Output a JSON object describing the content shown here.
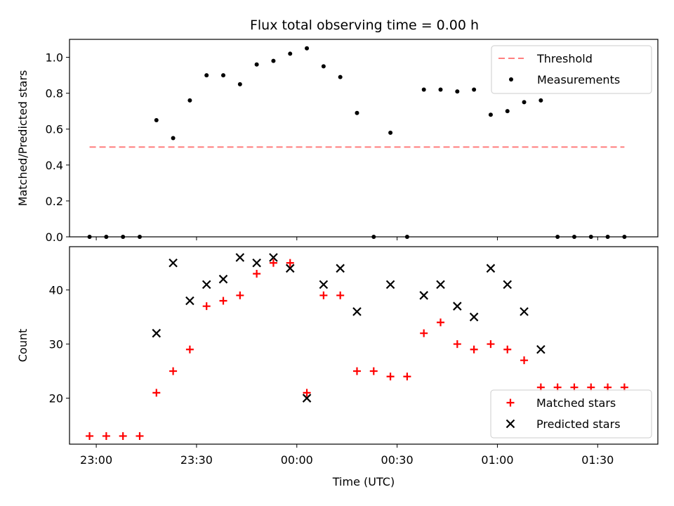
{
  "chart_data": {
    "title": "Flux total observing time = 0.00 h",
    "xlabel": "Time (UTC)",
    "x_tick_labels": [
      "23:00",
      "23:30",
      "00:00",
      "00:30",
      "01:00",
      "01:30"
    ],
    "x_tick_minutes": [
      0,
      30,
      60,
      90,
      120,
      150
    ],
    "xlim_minutes": [
      -8,
      168
    ],
    "x_times": [
      "22:58",
      "23:03",
      "23:08",
      "23:13",
      "23:18",
      "23:23",
      "23:28",
      "23:33",
      "23:38",
      "23:43",
      "23:48",
      "23:53",
      "23:58",
      "00:03",
      "00:08",
      "00:13",
      "00:18",
      "00:23",
      "00:28",
      "00:33",
      "00:38",
      "00:43",
      "00:48",
      "00:53",
      "00:58",
      "01:03",
      "01:08",
      "01:13",
      "01:18",
      "01:23",
      "01:28",
      "01:33",
      "01:38"
    ],
    "x_minutes": [
      -2,
      3,
      8,
      13,
      18,
      23,
      28,
      33,
      38,
      43,
      48,
      53,
      58,
      63,
      68,
      73,
      78,
      83,
      88,
      93,
      98,
      103,
      108,
      113,
      118,
      123,
      128,
      133,
      138,
      143,
      148,
      153,
      158
    ],
    "panels": [
      {
        "type": "scatter",
        "ylabel": "Matched/Predicted stars",
        "ylim": [
          0,
          1.1
        ],
        "yticks": [
          0.0,
          0.2,
          0.4,
          0.6,
          0.8,
          1.0
        ],
        "ytick_labels": [
          "0.0",
          "0.2",
          "0.4",
          "0.6",
          "0.8",
          "1.0"
        ],
        "legend": "top-right",
        "threshold": {
          "name": "Threshold",
          "value": 0.5,
          "color": "#ff7f7f",
          "style": "dashed"
        },
        "series": [
          {
            "name": "Measurements",
            "marker": "dot",
            "color": "#000000",
            "values": [
              0.0,
              0.0,
              0.0,
              0.0,
              0.65,
              0.55,
              0.76,
              0.9,
              0.9,
              0.85,
              0.96,
              0.98,
              1.02,
              1.05,
              0.95,
              0.89,
              0.69,
              0.0,
              0.58,
              0.0,
              0.82,
              0.82,
              0.81,
              0.82,
              0.68,
              0.7,
              0.75,
              0.76,
              0.0,
              0.0,
              0.0,
              0.0,
              0.0
            ]
          }
        ]
      },
      {
        "type": "scatter",
        "ylabel": "Count",
        "ylim": [
          11.5,
          48
        ],
        "yticks": [
          20,
          30,
          40
        ],
        "ytick_labels": [
          "20",
          "30",
          "40"
        ],
        "legend": "bottom-right",
        "series": [
          {
            "name": "Matched stars",
            "marker": "plus",
            "color": "#ff0000",
            "values": [
              13,
              13,
              13,
              13,
              21,
              25,
              29,
              37,
              38,
              39,
              43,
              45,
              45,
              21,
              39,
              39,
              25,
              25,
              24,
              24,
              32,
              34,
              30,
              29,
              30,
              29,
              27,
              22,
              22,
              22,
              22,
              22,
              22
            ]
          },
          {
            "name": "Predicted stars",
            "marker": "x",
            "color": "#000000",
            "values": [
              null,
              null,
              null,
              null,
              32,
              45,
              38,
              41,
              42,
              46,
              45,
              46,
              44,
              20,
              41,
              44,
              36,
              null,
              41,
              null,
              39,
              41,
              37,
              35,
              44,
              41,
              36,
              29,
              null,
              null,
              null,
              null,
              null
            ]
          }
        ]
      }
    ]
  }
}
